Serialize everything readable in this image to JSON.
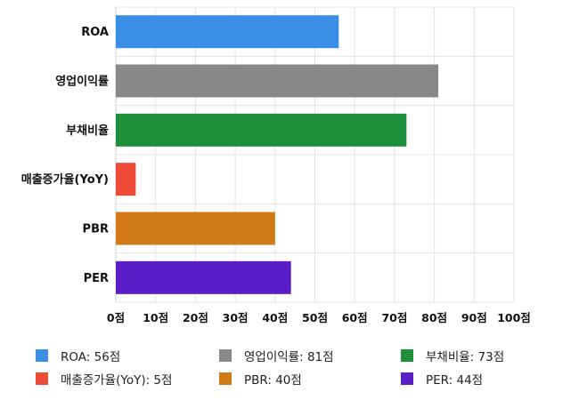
{
  "chart_data": {
    "type": "bar",
    "orientation": "horizontal",
    "categories": [
      "ROA",
      "영업이익률",
      "부채비율",
      "매출증가율(YoY)",
      "PBR",
      "PER"
    ],
    "values": [
      56,
      81,
      73,
      5,
      40,
      44
    ],
    "colors": [
      "#3a8ee6",
      "#888888",
      "#1e8f3a",
      "#f04b37",
      "#d07a18",
      "#5a1ec8"
    ],
    "xlim": [
      0,
      100
    ],
    "x_ticks": [
      0,
      10,
      20,
      30,
      40,
      50,
      60,
      70,
      80,
      90,
      100
    ],
    "x_tick_labels": [
      "0점",
      "10점",
      "20점",
      "30점",
      "40점",
      "50점",
      "60점",
      "70점",
      "80점",
      "90점",
      "100점"
    ],
    "grid": true,
    "legend_position": "bottom",
    "legend": [
      {
        "label": "ROA: 56점",
        "color": "#3a8ee6"
      },
      {
        "label": "영업이익률: 81점",
        "color": "#888888"
      },
      {
        "label": "부채비율: 73점",
        "color": "#1e8f3a"
      },
      {
        "label": "매출증가율(YoY): 5점",
        "color": "#f04b37"
      },
      {
        "label": "PBR: 40점",
        "color": "#d07a18"
      },
      {
        "label": "PER: 44점",
        "color": "#5a1ec8"
      }
    ]
  }
}
